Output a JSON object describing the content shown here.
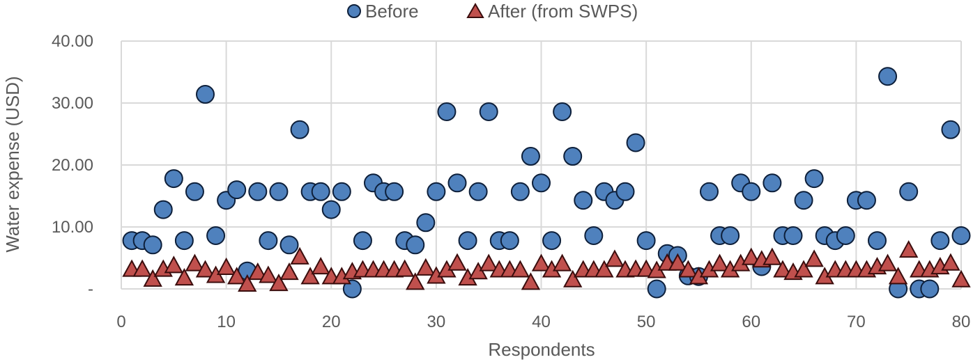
{
  "chart_data": {
    "type": "scatter",
    "title": "",
    "xlabel": "Respondents",
    "ylabel": "Water expense (USD)",
    "xlim": [
      0,
      80
    ],
    "ylim": [
      0,
      40
    ],
    "x_ticks": [
      0,
      10,
      20,
      30,
      40,
      50,
      60,
      70,
      80
    ],
    "x_tick_labels": [
      "0",
      "10",
      "20",
      "30",
      "40",
      "50",
      "60",
      "70",
      "80"
    ],
    "y_ticks": [
      0,
      10,
      20,
      30,
      40
    ],
    "y_tick_labels": [
      "-",
      "10.00",
      "20.00",
      "30.00",
      "40.00"
    ],
    "grid": true,
    "legend_position": "top-center",
    "series": [
      {
        "name": "Before",
        "marker": "circle",
        "color": "#4F81BD",
        "edge_color": "#0D1F3A",
        "x": [
          1,
          2,
          3,
          4,
          5,
          6,
          7,
          8,
          9,
          10,
          11,
          12,
          13,
          14,
          15,
          16,
          17,
          18,
          19,
          20,
          21,
          22,
          23,
          24,
          25,
          26,
          27,
          28,
          29,
          30,
          31,
          32,
          33,
          34,
          35,
          36,
          37,
          38,
          39,
          40,
          41,
          42,
          43,
          44,
          45,
          46,
          47,
          48,
          49,
          50,
          51,
          52,
          53,
          54,
          55,
          56,
          57,
          58,
          59,
          60,
          61,
          62,
          63,
          64,
          65,
          66,
          67,
          68,
          69,
          70,
          71,
          72,
          73,
          74,
          75,
          76,
          77,
          78,
          79,
          80
        ],
        "y": [
          7.8,
          7.8,
          7.1,
          12.8,
          17.8,
          7.8,
          15.7,
          31.4,
          8.6,
          14.3,
          16.0,
          2.9,
          15.7,
          7.8,
          15.7,
          7.1,
          25.7,
          15.7,
          15.7,
          12.8,
          15.7,
          0,
          7.8,
          17.1,
          15.7,
          15.7,
          7.8,
          7.1,
          10.7,
          15.7,
          28.6,
          17.1,
          7.8,
          15.7,
          28.6,
          7.8,
          7.8,
          15.7,
          21.4,
          17.1,
          7.8,
          28.6,
          21.4,
          14.3,
          8.6,
          15.7,
          14.3,
          15.7,
          23.6,
          7.8,
          0,
          5.7,
          5.4,
          2.1,
          2.0,
          15.7,
          8.6,
          8.6,
          17.1,
          15.7,
          3.6,
          17.1,
          8.6,
          8.6,
          14.3,
          17.8,
          8.6,
          7.8,
          8.6,
          14.3,
          14.3,
          7.8,
          34.3,
          0,
          15.7,
          0,
          0,
          7.8,
          25.7,
          8.6
        ]
      },
      {
        "name": "After (from SWPS)",
        "marker": "triangle",
        "color": "#C0504D",
        "edge_color": "#3A0D0D",
        "x": [
          1,
          2,
          3,
          4,
          5,
          6,
          7,
          8,
          9,
          10,
          11,
          12,
          13,
          14,
          15,
          16,
          17,
          18,
          19,
          20,
          21,
          22,
          23,
          24,
          25,
          26,
          27,
          28,
          29,
          30,
          31,
          32,
          33,
          34,
          35,
          36,
          37,
          38,
          39,
          40,
          41,
          42,
          43,
          44,
          45,
          46,
          47,
          48,
          49,
          50,
          51,
          52,
          53,
          54,
          55,
          56,
          57,
          58,
          59,
          60,
          61,
          62,
          63,
          64,
          65,
          66,
          67,
          68,
          69,
          70,
          71,
          72,
          73,
          74,
          75,
          76,
          77,
          78,
          79,
          80
        ],
        "y": [
          3.0,
          3.0,
          1.4,
          3.0,
          3.6,
          1.6,
          3.9,
          2.9,
          2.0,
          3.3,
          1.8,
          0.6,
          2.5,
          2.0,
          0.7,
          2.5,
          5.0,
          1.8,
          3.4,
          1.8,
          1.8,
          2.6,
          2.9,
          2.9,
          2.9,
          2.9,
          3.0,
          0.9,
          3.2,
          1.9,
          2.9,
          4.0,
          1.6,
          2.6,
          3.9,
          2.9,
          2.9,
          2.9,
          0.9,
          3.9,
          2.9,
          3.9,
          1.3,
          2.9,
          2.9,
          2.9,
          4.6,
          2.9,
          3.0,
          3.0,
          2.8,
          4.0,
          4.0,
          2.9,
          1.8,
          2.9,
          3.9,
          2.9,
          3.9,
          4.9,
          4.5,
          4.9,
          2.9,
          2.5,
          2.9,
          4.6,
          1.8,
          2.9,
          2.9,
          2.9,
          2.9,
          3.4,
          3.9,
          1.8,
          6.1,
          2.9,
          2.9,
          3.4,
          4.0,
          1.3
        ]
      }
    ]
  }
}
